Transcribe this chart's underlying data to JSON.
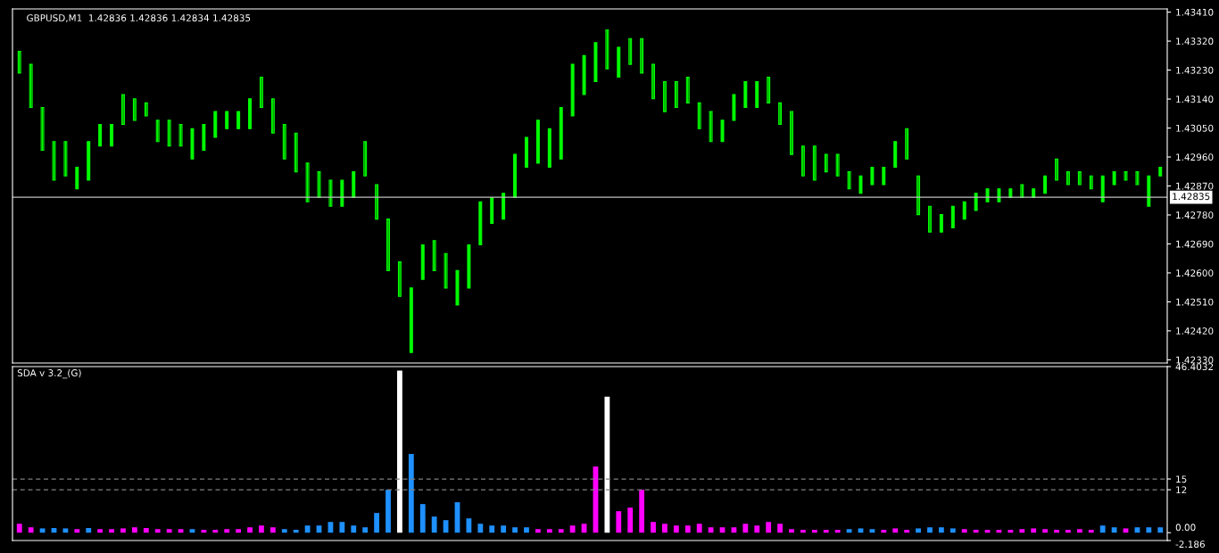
{
  "chart_data": [
    {
      "type": "candlestick",
      "title": "GBPUSD,M1  1.42836 1.42836 1.42834 1.42835",
      "tick_labels": "y",
      "grid": false,
      "legend": false,
      "categories": [
        null,
        null,
        null,
        null,
        null,
        null,
        null,
        null,
        null,
        null,
        null,
        null,
        null,
        null,
        null,
        null,
        null,
        null,
        null,
        null,
        null,
        null,
        null,
        null,
        null,
        null,
        null,
        null,
        null,
        null,
        null,
        null,
        null,
        null,
        null,
        null,
        null,
        null,
        null,
        null,
        null,
        null,
        null,
        null,
        null,
        null,
        null,
        null,
        null,
        null,
        null,
        null,
        null,
        null,
        null,
        null,
        null,
        null,
        null,
        null,
        null,
        null,
        null,
        null,
        null,
        null,
        null,
        null,
        null,
        null,
        null,
        null,
        null,
        null,
        null,
        null,
        null,
        null,
        null,
        null,
        null,
        null,
        null,
        null,
        null,
        null,
        null,
        null,
        null,
        null,
        null,
        null,
        null,
        null,
        null,
        null,
        null,
        null,
        null,
        null
      ],
      "color": "#00ff00",
      "ohlc": [
        [
          1.43288,
          1.43288,
          1.43221,
          1.43221
        ],
        [
          1.43248,
          1.43248,
          1.43114,
          1.43114
        ],
        [
          1.43114,
          1.43114,
          1.42981,
          1.42981
        ],
        [
          1.43008,
          1.43008,
          1.42888,
          1.42888
        ],
        [
          1.43008,
          1.43008,
          1.42901,
          1.42901
        ],
        [
          1.42861,
          1.42928,
          1.42861,
          1.42928
        ],
        [
          1.42888,
          1.43008,
          1.42888,
          1.43008
        ],
        [
          1.42994,
          1.43061,
          1.42994,
          1.43061
        ],
        [
          1.42994,
          1.43061,
          1.42994,
          1.43061
        ],
        [
          1.43154,
          1.43154,
          1.43061,
          1.43061
        ],
        [
          1.43141,
          1.43141,
          1.43074,
          1.43074
        ],
        [
          1.43128,
          1.43128,
          1.43088,
          1.43088
        ],
        [
          1.43074,
          1.43074,
          1.43008,
          1.43008
        ],
        [
          1.43074,
          1.43074,
          1.42994,
          1.42994
        ],
        [
          1.43061,
          1.43061,
          1.42994,
          1.42994
        ],
        [
          1.42954,
          1.43048,
          1.42954,
          1.43048
        ],
        [
          1.42981,
          1.43061,
          1.42981,
          1.43061
        ],
        [
          1.43021,
          1.43101,
          1.43021,
          1.43101
        ],
        [
          1.43048,
          1.43101,
          1.43048,
          1.43101
        ],
        [
          1.43048,
          1.43101,
          1.43048,
          1.43101
        ],
        [
          1.43048,
          1.43141,
          1.43048,
          1.43141
        ],
        [
          1.43208,
          1.43208,
          1.43114,
          1.43114
        ],
        [
          1.43141,
          1.43141,
          1.43034,
          1.43034
        ],
        [
          1.43061,
          1.43061,
          1.42954,
          1.42954
        ],
        [
          1.43034,
          1.43034,
          1.42914,
          1.42914
        ],
        [
          1.42941,
          1.42941,
          1.42821,
          1.42821
        ],
        [
          1.42914,
          1.42914,
          1.42834,
          1.42834
        ],
        [
          1.42888,
          1.42888,
          1.42807,
          1.42807
        ],
        [
          1.42807,
          1.42888,
          1.42807,
          1.42888
        ],
        [
          1.42834,
          1.42914,
          1.42834,
          1.42914
        ],
        [
          1.43008,
          1.43008,
          1.42901,
          1.42901
        ],
        [
          1.42874,
          1.42874,
          1.42767,
          1.42767
        ],
        [
          1.42767,
          1.42767,
          1.42607,
          1.42607
        ],
        [
          1.42634,
          1.42634,
          1.42527,
          1.42527
        ],
        [
          1.42353,
          1.42553,
          1.42353,
          1.42553
        ],
        [
          1.4258,
          1.42687,
          1.4258,
          1.42687
        ],
        [
          1.427,
          1.427,
          1.42607,
          1.42607
        ],
        [
          1.4266,
          1.4266,
          1.42553,
          1.42553
        ],
        [
          1.425,
          1.42607,
          1.425,
          1.42607
        ],
        [
          1.42553,
          1.42687,
          1.42553,
          1.42687
        ],
        [
          1.42687,
          1.42821,
          1.42687,
          1.42821
        ],
        [
          1.42754,
          1.42834,
          1.42754,
          1.42834
        ],
        [
          1.42767,
          1.42847,
          1.42767,
          1.42847
        ],
        [
          1.42834,
          1.42968,
          1.42834,
          1.42968
        ],
        [
          1.42928,
          1.43021,
          1.42928,
          1.43021
        ],
        [
          1.42941,
          1.43074,
          1.42941,
          1.43074
        ],
        [
          1.42928,
          1.43048,
          1.42928,
          1.43048
        ],
        [
          1.42954,
          1.43114,
          1.42954,
          1.43114
        ],
        [
          1.43088,
          1.43248,
          1.43088,
          1.43248
        ],
        [
          1.43154,
          1.43275,
          1.43154,
          1.43275
        ],
        [
          1.43194,
          1.43315,
          1.43194,
          1.43315
        ],
        [
          1.43355,
          1.43355,
          1.43234,
          1.43234
        ],
        [
          1.43208,
          1.43301,
          1.43208,
          1.43301
        ],
        [
          1.43328,
          1.43328,
          1.43248,
          1.43248
        ],
        [
          1.43328,
          1.43328,
          1.43221,
          1.43221
        ],
        [
          1.43248,
          1.43248,
          1.43141,
          1.43141
        ],
        [
          1.43194,
          1.43194,
          1.43101,
          1.43101
        ],
        [
          1.43194,
          1.43194,
          1.43114,
          1.43114
        ],
        [
          1.43208,
          1.43208,
          1.43128,
          1.43128
        ],
        [
          1.43128,
          1.43128,
          1.43048,
          1.43048
        ],
        [
          1.43101,
          1.43101,
          1.43008,
          1.43008
        ],
        [
          1.43008,
          1.43074,
          1.43008,
          1.43074
        ],
        [
          1.43074,
          1.43154,
          1.43074,
          1.43154
        ],
        [
          1.43114,
          1.43194,
          1.43114,
          1.43194
        ],
        [
          1.43114,
          1.43194,
          1.43114,
          1.43194
        ],
        [
          1.43208,
          1.43208,
          1.43128,
          1.43128
        ],
        [
          1.43128,
          1.43128,
          1.43061,
          1.43061
        ],
        [
          1.43101,
          1.43101,
          1.42968,
          1.42968
        ],
        [
          1.42994,
          1.42994,
          1.42901,
          1.42901
        ],
        [
          1.42994,
          1.42994,
          1.42888,
          1.42888
        ],
        [
          1.42968,
          1.42968,
          1.42914,
          1.42914
        ],
        [
          1.42968,
          1.42968,
          1.42901,
          1.42901
        ],
        [
          1.42914,
          1.42914,
          1.42861,
          1.42861
        ],
        [
          1.42847,
          1.42901,
          1.42847,
          1.42901
        ],
        [
          1.42874,
          1.42928,
          1.42874,
          1.42928
        ],
        [
          1.42874,
          1.42928,
          1.42874,
          1.42928
        ],
        [
          1.42928,
          1.43008,
          1.42928,
          1.43008
        ],
        [
          1.43048,
          1.43048,
          1.42954,
          1.42954
        ],
        [
          1.42901,
          1.42901,
          1.42781,
          1.42781
        ],
        [
          1.42807,
          1.42807,
          1.42727,
          1.42727
        ],
        [
          1.42727,
          1.42781,
          1.42727,
          1.42781
        ],
        [
          1.4274,
          1.42807,
          1.4274,
          1.42807
        ],
        [
          1.42767,
          1.42821,
          1.42767,
          1.42821
        ],
        [
          1.42794,
          1.42847,
          1.42794,
          1.42847
        ],
        [
          1.42821,
          1.42861,
          1.42821,
          1.42861
        ],
        [
          1.42821,
          1.42861,
          1.42821,
          1.42861
        ],
        [
          1.42834,
          1.42861,
          1.42834,
          1.42861
        ],
        [
          1.42874,
          1.42874,
          1.42834,
          1.42834
        ],
        [
          1.42834,
          1.42861,
          1.42834,
          1.42861
        ],
        [
          1.42847,
          1.42901,
          1.42847,
          1.42901
        ],
        [
          1.42954,
          1.42954,
          1.42888,
          1.42888
        ],
        [
          1.42914,
          1.42914,
          1.42874,
          1.42874
        ],
        [
          1.42914,
          1.42914,
          1.42874,
          1.42874
        ],
        [
          1.42901,
          1.42901,
          1.42861,
          1.42861
        ],
        [
          1.42821,
          1.42901,
          1.42821,
          1.42901
        ],
        [
          1.42874,
          1.42914,
          1.42874,
          1.42914
        ],
        [
          1.42914,
          1.42914,
          1.42888,
          1.42888
        ],
        [
          1.42914,
          1.42914,
          1.42874,
          1.42874
        ],
        [
          1.42807,
          1.42901,
          1.42807,
          1.42901
        ],
        [
          1.42901,
          1.42928,
          1.42901,
          1.42928
        ]
      ],
      "ylim": [
        1.4232,
        1.4342
      ],
      "yticks": [
        {
          "value": 1.4233,
          "label": "1.42330"
        },
        {
          "value": 1.4242,
          "label": "1.42420"
        },
        {
          "value": 1.4251,
          "label": "1.42510"
        },
        {
          "value": 1.426,
          "label": "1.42600"
        },
        {
          "value": 1.4269,
          "label": "1.42690"
        },
        {
          "value": 1.4278,
          "label": "1.42780"
        },
        {
          "value": 1.4287,
          "label": "1.42870"
        },
        {
          "value": 1.4296,
          "label": "1.42960"
        },
        {
          "value": 1.4305,
          "label": "1.43050"
        },
        {
          "value": 1.4314,
          "label": "1.43140"
        },
        {
          "value": 1.4323,
          "label": "1.43230"
        },
        {
          "value": 1.4332,
          "label": "1.43320"
        },
        {
          "value": 1.4341,
          "label": "1.43410"
        }
      ],
      "ref_lines": [
        {
          "axis": "y",
          "value": 1.42835,
          "label": "1.42835",
          "color": "#c0c0c0",
          "line_style": "solid"
        }
      ]
    },
    {
      "type": "bar",
      "title": "SDA v 3.2_(G)",
      "tick_labels": "y",
      "grid": false,
      "legend": false,
      "categories": [
        null,
        null,
        null,
        null,
        null,
        null,
        null,
        null,
        null,
        null,
        null,
        null,
        null,
        null,
        null,
        null,
        null,
        null,
        null,
        null,
        null,
        null,
        null,
        null,
        null,
        null,
        null,
        null,
        null,
        null,
        null,
        null,
        null,
        null,
        null,
        null,
        null,
        null,
        null,
        null,
        null,
        null,
        null,
        null,
        null,
        null,
        null,
        null,
        null,
        null,
        null,
        null,
        null,
        null,
        null,
        null,
        null,
        null,
        null,
        null,
        null,
        null,
        null,
        null,
        null,
        null,
        null,
        null,
        null,
        null,
        null,
        null,
        null,
        null,
        null,
        null,
        null,
        null,
        null,
        null,
        null,
        null,
        null,
        null,
        null,
        null,
        null,
        null,
        null,
        null,
        null,
        null,
        null,
        null,
        null,
        null,
        null,
        null,
        null,
        null
      ],
      "values": [
        2.5,
        1.5,
        1.2,
        1.3,
        1.2,
        1.0,
        1.3,
        1.0,
        1.0,
        1.2,
        1.5,
        1.3,
        1.0,
        1.0,
        1.0,
        1.0,
        0.8,
        0.8,
        1.0,
        1.0,
        1.5,
        2.0,
        1.5,
        1.0,
        0.8,
        2.0,
        2.0,
        3.0,
        3.0,
        2.0,
        1.5,
        5.5,
        12,
        45.3,
        22,
        8,
        4.5,
        3.5,
        8.5,
        4,
        2.5,
        2,
        2,
        1.5,
        1.5,
        1,
        1,
        1,
        2,
        2.5,
        18.5,
        38,
        6,
        7,
        12,
        3,
        2.5,
        2,
        2,
        2.5,
        1.5,
        1.5,
        1.5,
        2.5,
        2,
        3,
        2.5,
        1,
        0.8,
        0.8,
        0.8,
        0.8,
        1,
        1.2,
        1,
        0.8,
        1.2,
        0.8,
        1.2,
        1.5,
        1.5,
        1.2,
        1,
        0.8,
        0.8,
        0.8,
        0.8,
        1,
        1.2,
        1,
        0.8,
        0.8,
        1,
        0.8,
        2,
        1.5,
        1.2,
        1.5,
        1.5,
        1.5
      ],
      "colors": [
        "#ff00ff",
        "#ff00ff",
        "#1e90ff",
        "#1e90ff",
        "#1e90ff",
        "#ff00ff",
        "#1e90ff",
        "#ff00ff",
        "#ff00ff",
        "#ff00ff",
        "#ff00ff",
        "#ff00ff",
        "#ff00ff",
        "#ff00ff",
        "#ff00ff",
        "#1e90ff",
        "#ff00ff",
        "#ff00ff",
        "#ff00ff",
        "#ff00ff",
        "#ff00ff",
        "#ff00ff",
        "#ff00ff",
        "#1e90ff",
        "#1e90ff",
        "#1e90ff",
        "#1e90ff",
        "#1e90ff",
        "#1e90ff",
        "#1e90ff",
        "#1e90ff",
        "#1e90ff",
        "#1e90ff",
        "#ffffff",
        "#1e90ff",
        "#1e90ff",
        "#1e90ff",
        "#1e90ff",
        "#1e90ff",
        "#1e90ff",
        "#1e90ff",
        "#1e90ff",
        "#1e90ff",
        "#1e90ff",
        "#1e90ff",
        "#ff00ff",
        "#ff00ff",
        "#ff00ff",
        "#ff00ff",
        "#ff00ff",
        "#ff00ff",
        "#ffffff",
        "#ff00ff",
        "#ff00ff",
        "#ff00ff",
        "#ff00ff",
        "#ff00ff",
        "#ff00ff",
        "#ff00ff",
        "#ff00ff",
        "#ff00ff",
        "#ff00ff",
        "#ff00ff",
        "#ff00ff",
        "#ff00ff",
        "#ff00ff",
        "#ff00ff",
        "#ff00ff",
        "#ff00ff",
        "#ff00ff",
        "#ff00ff",
        "#ff00ff",
        "#1e90ff",
        "#1e90ff",
        "#1e90ff",
        "#ff00ff",
        "#ff00ff",
        "#ff00ff",
        "#1e90ff",
        "#1e90ff",
        "#1e90ff",
        "#1e90ff",
        "#ff00ff",
        "#ff00ff",
        "#ff00ff",
        "#ff00ff",
        "#ff00ff",
        "#ff00ff",
        "#ff00ff",
        "#ff00ff",
        "#ff00ff",
        "#ff00ff",
        "#ff00ff",
        "#ff00ff",
        "#1e90ff",
        "#1e90ff",
        "#ff00ff",
        "#1e90ff",
        "#1e90ff",
        "#1e90ff"
      ],
      "ylim": [
        -2.186,
        46.4032
      ],
      "yticks": [
        46.4032,
        15,
        12,
        {
          "value": 0,
          "label": "0.00"
        },
        {
          "value": -2.186,
          "label": "-2.186"
        }
      ],
      "ref_lines": [
        {
          "axis": "y",
          "value": 15,
          "color": "#808080",
          "line_style": "dashed"
        },
        {
          "axis": "y",
          "value": 12,
          "color": "#808080",
          "line_style": "dashed"
        }
      ]
    }
  ]
}
